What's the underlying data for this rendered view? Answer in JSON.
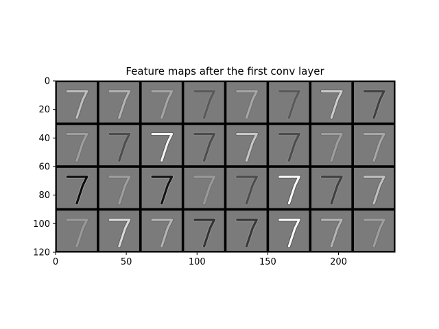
{
  "chart_data": {
    "type": "heatmap",
    "title": "Feature maps after the first conv layer",
    "xlabel": "",
    "ylabel": "",
    "xlim": [
      0,
      240
    ],
    "ylim": [
      0,
      120
    ],
    "y_inverted": true,
    "xticks": [
      0,
      50,
      100,
      150,
      200
    ],
    "yticks": [
      0,
      20,
      40,
      60,
      80,
      100,
      120
    ],
    "grid": false,
    "colormap": "grayscale",
    "tile_grid": {
      "rows": 4,
      "cols": 8,
      "tile_size": 30
    },
    "feature_maps": [
      {
        "row": 0,
        "col": 0,
        "digit": "7",
        "intensity": 0.75
      },
      {
        "row": 0,
        "col": 1,
        "digit": "7",
        "intensity": 0.7
      },
      {
        "row": 0,
        "col": 2,
        "digit": "7",
        "intensity": 0.65
      },
      {
        "row": 0,
        "col": 3,
        "digit": "7",
        "intensity": 0.35
      },
      {
        "row": 0,
        "col": 4,
        "digit": "7",
        "intensity": 0.65
      },
      {
        "row": 0,
        "col": 5,
        "digit": "7",
        "intensity": 0.35
      },
      {
        "row": 0,
        "col": 6,
        "digit": "7",
        "intensity": 0.8
      },
      {
        "row": 0,
        "col": 7,
        "digit": "7",
        "intensity": 0.25
      },
      {
        "row": 1,
        "col": 0,
        "digit": "7",
        "intensity": 0.62
      },
      {
        "row": 1,
        "col": 1,
        "digit": "7",
        "intensity": 0.3
      },
      {
        "row": 1,
        "col": 2,
        "digit": "7",
        "intensity": 0.95
      },
      {
        "row": 1,
        "col": 3,
        "digit": "7",
        "intensity": 0.3
      },
      {
        "row": 1,
        "col": 4,
        "digit": "7",
        "intensity": 0.78
      },
      {
        "row": 1,
        "col": 5,
        "digit": "7",
        "intensity": 0.3
      },
      {
        "row": 1,
        "col": 6,
        "digit": "7",
        "intensity": 0.62
      },
      {
        "row": 1,
        "col": 7,
        "digit": "7",
        "intensity": 0.65
      },
      {
        "row": 2,
        "col": 0,
        "digit": "7",
        "intensity": 0.05
      },
      {
        "row": 2,
        "col": 1,
        "digit": "7",
        "intensity": 0.62
      },
      {
        "row": 2,
        "col": 2,
        "digit": "7",
        "intensity": 0.08
      },
      {
        "row": 2,
        "col": 3,
        "digit": "7",
        "intensity": 0.6
      },
      {
        "row": 2,
        "col": 4,
        "digit": "7",
        "intensity": 0.3
      },
      {
        "row": 2,
        "col": 5,
        "digit": "7",
        "intensity": 0.98
      },
      {
        "row": 2,
        "col": 6,
        "digit": "7",
        "intensity": 0.25
      },
      {
        "row": 2,
        "col": 7,
        "digit": "7",
        "intensity": 0.75
      },
      {
        "row": 3,
        "col": 0,
        "digit": "7",
        "intensity": 0.6
      },
      {
        "row": 3,
        "col": 1,
        "digit": "7",
        "intensity": 0.85
      },
      {
        "row": 3,
        "col": 2,
        "digit": "7",
        "intensity": 0.7
      },
      {
        "row": 3,
        "col": 3,
        "digit": "7",
        "intensity": 0.2
      },
      {
        "row": 3,
        "col": 4,
        "digit": "7",
        "intensity": 0.22
      },
      {
        "row": 3,
        "col": 5,
        "digit": "7",
        "intensity": 0.98
      },
      {
        "row": 3,
        "col": 6,
        "digit": "7",
        "intensity": 0.7
      },
      {
        "row": 3,
        "col": 7,
        "digit": "7",
        "intensity": 0.62
      }
    ],
    "colors": {
      "separator": "#000000",
      "tile_background": "#7b7b7b",
      "axis": "#000000"
    }
  }
}
